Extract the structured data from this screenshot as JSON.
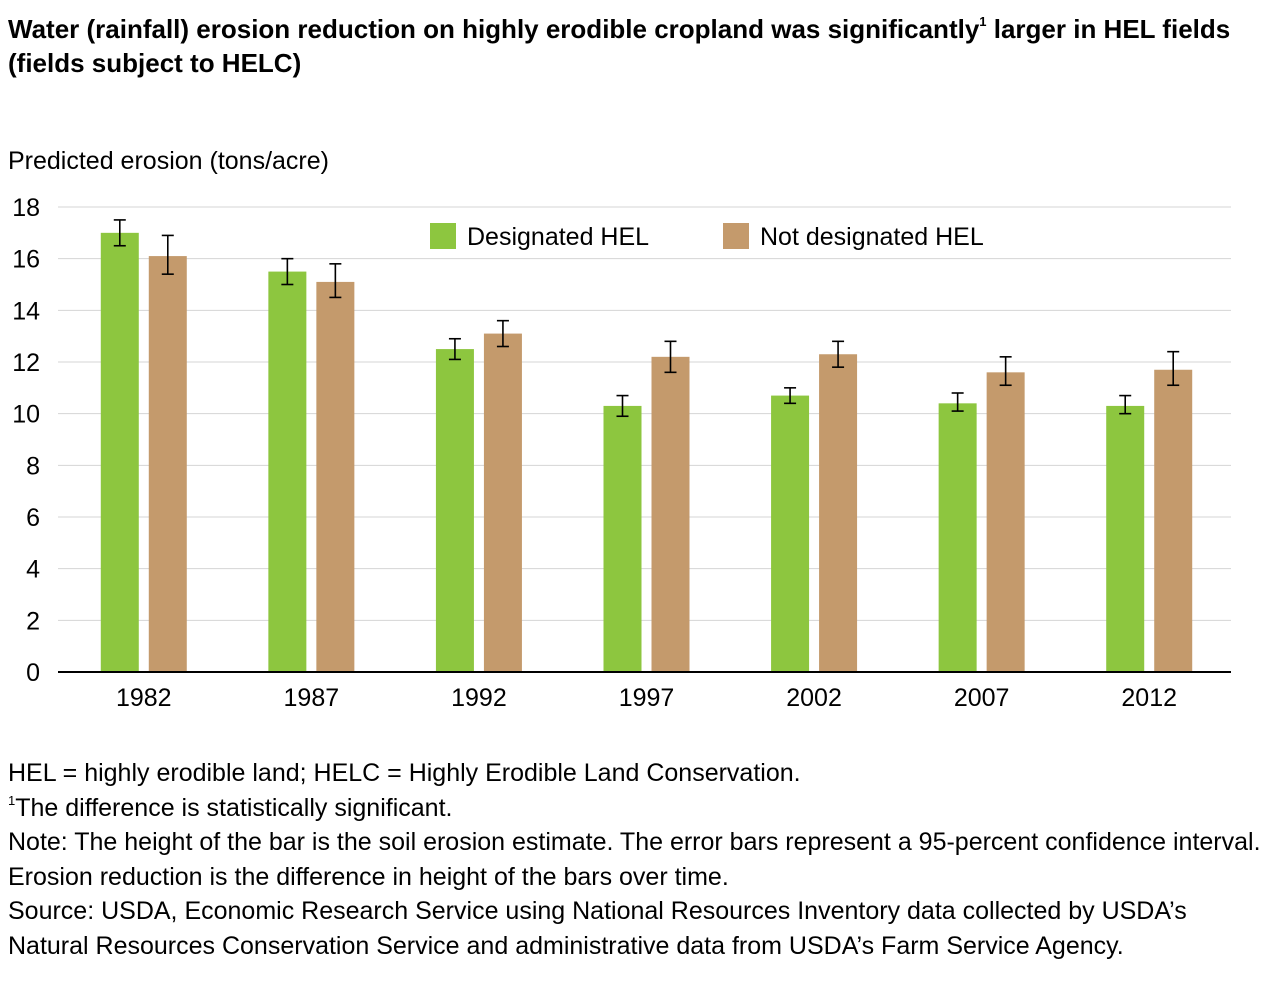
{
  "title": {
    "text_before": "Water (rainfall) erosion reduction on highly erodible cropland was significantly",
    "superscript": "1",
    "text_after": " larger in HEL fields (fields subject to HELC)"
  },
  "notes": {
    "definitions": "HEL = highly erodible land; HELC = Highly Erodible Land Conservation.",
    "footnote_marker": "1",
    "footnote_text": "The difference is statistically significant.",
    "note": "Note: The height of the bar is the soil erosion estimate. The error bars represent a 95-percent confidence interval. Erosion reduction is the difference in height of the bars over time.",
    "source": "Source: USDA, Economic Research Service using National Resources Inventory data collected by USDA’s Natural Resources Conservation Service and administrative data from USDA’s Farm Service Agency."
  },
  "chart_data": {
    "type": "bar",
    "title": "",
    "xlabel": "",
    "ylabel": "Predicted erosion (tons/acre)",
    "ylim": [
      0,
      18
    ],
    "yticks": [
      0,
      2,
      4,
      6,
      8,
      10,
      12,
      14,
      16,
      18
    ],
    "grid": true,
    "legend_position": "top-center",
    "categories": [
      "1982",
      "1987",
      "1992",
      "1997",
      "2002",
      "2007",
      "2012"
    ],
    "series": [
      {
        "name": "Designated HEL",
        "color": "#8dc63f",
        "values": [
          17.0,
          15.5,
          12.5,
          10.3,
          10.7,
          10.4,
          10.3
        ],
        "error_low": [
          16.5,
          15.0,
          12.1,
          9.9,
          10.4,
          10.1,
          10.0
        ],
        "error_high": [
          17.5,
          16.0,
          12.9,
          10.7,
          11.0,
          10.8,
          10.7
        ]
      },
      {
        "name": "Not designated HEL",
        "color": "#c49a6c",
        "values": [
          16.1,
          15.1,
          13.1,
          12.2,
          12.3,
          11.6,
          11.7
        ],
        "error_low": [
          15.4,
          14.5,
          12.6,
          11.6,
          11.8,
          11.1,
          11.1
        ],
        "error_high": [
          16.9,
          15.8,
          13.6,
          12.8,
          12.8,
          12.2,
          12.4
        ]
      }
    ]
  }
}
